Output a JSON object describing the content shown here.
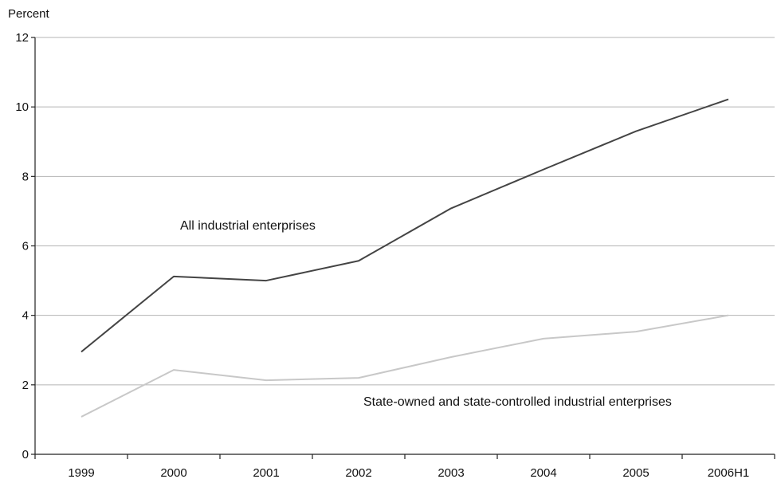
{
  "chart_data": {
    "type": "line",
    "title": "",
    "xlabel": "",
    "ylabel": "Percent",
    "ylim": [
      0,
      12
    ],
    "yticks": [
      0,
      2,
      4,
      6,
      8,
      10,
      12
    ],
    "categories": [
      "1999",
      "2000",
      "2001",
      "2002",
      "2003",
      "2004",
      "2005",
      "2006H1"
    ],
    "grid": "horizontal",
    "legend": "none",
    "series": [
      {
        "name": "All industrial enterprises",
        "color": "#444444",
        "values": [
          2.95,
          5.12,
          5.0,
          5.57,
          7.08,
          8.2,
          9.3,
          10.22
        ]
      },
      {
        "name": "State-owned and state-controlled industrial enterprises",
        "color": "#c8c8c8",
        "values": [
          1.08,
          2.43,
          2.13,
          2.2,
          2.8,
          3.33,
          3.53,
          4.0
        ]
      }
    ]
  }
}
